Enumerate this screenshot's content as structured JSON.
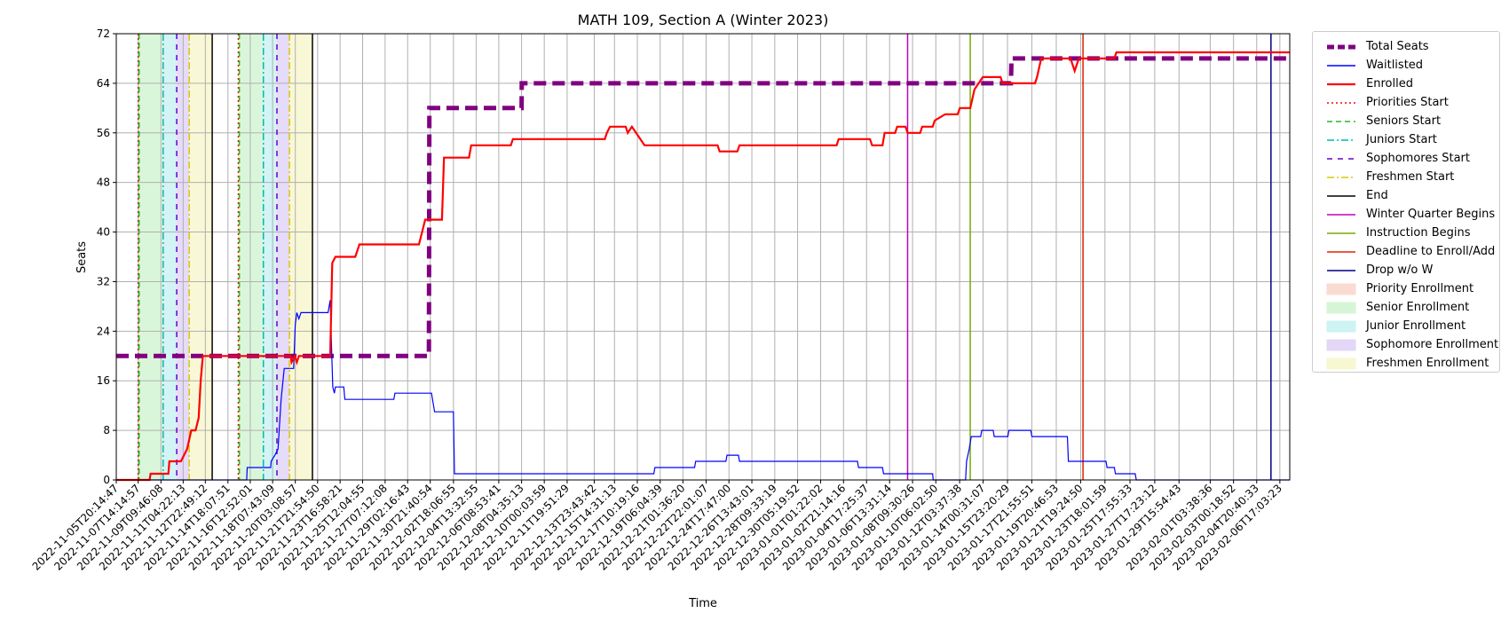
{
  "chart_data": {
    "type": "line",
    "title": "MATH 109, Section A (Winter 2023)",
    "xlabel": "Time",
    "ylabel": "Seats",
    "ylim": [
      0,
      72
    ],
    "yticks": [
      0,
      8,
      16,
      24,
      32,
      40,
      48,
      56,
      64,
      72
    ],
    "xrange": [
      "2022-11-05T20:14:47",
      "2023-02-07T12:00:00"
    ],
    "xtick_labels": [
      "2022-11-05T20:14:47",
      "2022-11-07T14:14:57",
      "2022-11-09T09:46:08",
      "2022-11-11T04:22:13",
      "2022-11-12T22:49:12",
      "2022-11-14T18:07:51",
      "2022-11-16T12:52:01",
      "2022-11-18T07:43:09",
      "2022-11-20T03:08:57",
      "2022-11-21T21:54:50",
      "2022-11-23T16:58:21",
      "2022-11-25T12:04:55",
      "2022-11-27T07:12:08",
      "2022-11-29T02:16:43",
      "2022-11-30T21:40:54",
      "2022-12-02T18:06:55",
      "2022-12-04T13:32:55",
      "2022-12-06T08:53:41",
      "2022-12-08T04:35:13",
      "2022-12-10T00:03:59",
      "2022-12-11T19:51:29",
      "2022-12-13T23:43:42",
      "2022-12-15T14:31:13",
      "2022-12-17T10:19:16",
      "2022-12-19T06:04:39",
      "2022-12-21T01:36:20",
      "2022-12-22T22:01:07",
      "2022-12-24T17:47:00",
      "2022-12-26T13:43:01",
      "2022-12-28T09:33:19",
      "2022-12-30T05:19:52",
      "2023-01-01T01:22:02",
      "2023-01-02T21:14:16",
      "2023-01-04T17:25:37",
      "2023-01-06T13:31:14",
      "2023-01-08T09:30:26",
      "2023-01-10T06:02:50",
      "2023-01-12T03:37:38",
      "2023-01-14T00:31:07",
      "2023-01-15T23:20:29",
      "2023-01-17T21:55:51",
      "2023-01-19T20:46:53",
      "2023-01-21T19:24:50",
      "2023-01-23T18:01:59",
      "2023-01-25T17:55:33",
      "2023-01-27T17:23:12",
      "2023-01-29T15:54:43",
      "2023-02-01T03:38:36",
      "2023-02-03T00:18:52",
      "2023-02-04T20:40:33",
      "2023-02-06T17:03:23"
    ],
    "grid": true,
    "legend_position": "outside-right",
    "series": [
      {
        "name": "Total Seats",
        "color": "#800080",
        "style": "dashed-thick",
        "points": [
          [
            "2022-11-05T20:14:47",
            20
          ],
          [
            "2022-11-30T19:00:00",
            20
          ],
          [
            "2022-11-30T20:00:00",
            60
          ],
          [
            "2022-12-08T04:35:13",
            60
          ],
          [
            "2022-12-08T05:00:00",
            64
          ],
          [
            "2023-01-16T06:00:00",
            64
          ],
          [
            "2023-01-16T07:00:00",
            68
          ],
          [
            "2023-02-07T12:00:00",
            68
          ]
        ]
      },
      {
        "name": "Waitlisted",
        "color": "#0000ff",
        "style": "solid",
        "points": [
          [
            "2022-11-05T20:14:47",
            0
          ],
          [
            "2022-11-16T06:00:00",
            0
          ],
          [
            "2022-11-16T07:00:00",
            2
          ],
          [
            "2022-11-18T04:00:00",
            2
          ],
          [
            "2022-11-18T05:00:00",
            3
          ],
          [
            "2022-11-18T12:00:00",
            4
          ],
          [
            "2022-11-18T18:00:00",
            5
          ],
          [
            "2022-11-19T00:00:00",
            13
          ],
          [
            "2022-11-19T06:00:00",
            18
          ],
          [
            "2022-11-20T00:00:00",
            18
          ],
          [
            "2022-11-20T03:00:00",
            25
          ],
          [
            "2022-11-20T06:00:00",
            27
          ],
          [
            "2022-11-20T10:00:00",
            26
          ],
          [
            "2022-11-20T14:00:00",
            27
          ],
          [
            "2022-11-22T18:00:00",
            27
          ],
          [
            "2022-11-22T22:00:00",
            29
          ],
          [
            "2022-11-23T01:00:00",
            20
          ],
          [
            "2022-11-23T03:00:00",
            15
          ],
          [
            "2022-11-23T06:00:00",
            14
          ],
          [
            "2022-11-23T08:00:00",
            15
          ],
          [
            "2022-11-24T00:00:00",
            15
          ],
          [
            "2022-11-24T02:00:00",
            13
          ],
          [
            "2022-11-28T00:00:00",
            13
          ],
          [
            "2022-11-28T02:00:00",
            14
          ],
          [
            "2022-12-01T00:00:00",
            14
          ],
          [
            "2022-12-01T06:00:00",
            11
          ],
          [
            "2022-12-02T18:00:00",
            11
          ],
          [
            "2022-12-02T20:00:00",
            1
          ],
          [
            "2022-12-18T18:00:00",
            1
          ],
          [
            "2022-12-18T20:00:00",
            2
          ],
          [
            "2022-12-22T00:00:00",
            2
          ],
          [
            "2022-12-22T02:00:00",
            3
          ],
          [
            "2022-12-24T12:00:00",
            3
          ],
          [
            "2022-12-24T14:00:00",
            4
          ],
          [
            "2022-12-25T12:00:00",
            4
          ],
          [
            "2022-12-25T14:00:00",
            3
          ],
          [
            "2023-01-04T00:00:00",
            3
          ],
          [
            "2023-01-04T02:00:00",
            2
          ],
          [
            "2023-01-06T00:00:00",
            2
          ],
          [
            "2023-01-06T02:00:00",
            1
          ],
          [
            "2023-01-10T00:00:00",
            1
          ],
          [
            "2023-01-10T01:00:00",
            0
          ],
          [
            "2023-01-12T15:00:00",
            0
          ],
          [
            "2023-01-12T17:00:00",
            3
          ],
          [
            "2023-01-12T22:00:00",
            5
          ],
          [
            "2023-01-13T02:00:00",
            7
          ],
          [
            "2023-01-13T20:00:00",
            7
          ],
          [
            "2023-01-13T22:00:00",
            8
          ],
          [
            "2023-01-14T20:00:00",
            8
          ],
          [
            "2023-01-14T22:00:00",
            7
          ],
          [
            "2023-01-16T00:00:00",
            7
          ],
          [
            "2023-01-16T02:00:00",
            8
          ],
          [
            "2023-01-17T20:00:00",
            8
          ],
          [
            "2023-01-17T22:00:00",
            7
          ],
          [
            "2023-01-20T18:00:00",
            7
          ],
          [
            "2023-01-20T20:00:00",
            3
          ],
          [
            "2023-01-23T20:00:00",
            3
          ],
          [
            "2023-01-23T22:00:00",
            2
          ],
          [
            "2023-01-24T12:00:00",
            2
          ],
          [
            "2023-01-24T14:00:00",
            1
          ],
          [
            "2023-01-26T04:00:00",
            1
          ],
          [
            "2023-01-26T06:00:00",
            0
          ],
          [
            "2023-02-07T12:00:00",
            0
          ]
        ]
      },
      {
        "name": "Enrolled",
        "color": "#ff0000",
        "style": "solid-thick",
        "points": [
          [
            "2022-11-05T20:14:47",
            0
          ],
          [
            "2022-11-08T12:00:00",
            0
          ],
          [
            "2022-11-08T14:00:00",
            1
          ],
          [
            "2022-11-10T00:00:00",
            1
          ],
          [
            "2022-11-10T02:00:00",
            3
          ],
          [
            "2022-11-11T00:00:00",
            3
          ],
          [
            "2022-11-11T06:00:00",
            4
          ],
          [
            "2022-11-11T12:00:00",
            5
          ],
          [
            "2022-11-11T20:00:00",
            8
          ],
          [
            "2022-11-12T04:00:00",
            8
          ],
          [
            "2022-11-12T10:00:00",
            10
          ],
          [
            "2022-11-12T14:00:00",
            16
          ],
          [
            "2022-11-12T18:00:00",
            20
          ],
          [
            "2022-11-19T00:00:00",
            20
          ],
          [
            "2022-11-19T18:00:00",
            20
          ],
          [
            "2022-11-19T20:00:00",
            19
          ],
          [
            "2022-11-20T02:00:00",
            20
          ],
          [
            "2022-11-20T06:00:00",
            19
          ],
          [
            "2022-11-20T10:00:00",
            20
          ],
          [
            "2022-11-22T22:00:00",
            20
          ],
          [
            "2022-11-23T02:00:00",
            35
          ],
          [
            "2022-11-23T08:00:00",
            36
          ],
          [
            "2022-11-24T22:00:00",
            36
          ],
          [
            "2022-11-25T02:00:00",
            37
          ],
          [
            "2022-11-25T06:00:00",
            38
          ],
          [
            "2022-11-30T00:00:00",
            38
          ],
          [
            "2022-11-30T06:00:00",
            40
          ],
          [
            "2022-11-30T12:00:00",
            42
          ],
          [
            "2022-12-01T20:00:00",
            42
          ],
          [
            "2022-12-02T00:00:00",
            52
          ],
          [
            "2022-12-04T00:00:00",
            52
          ],
          [
            "2022-12-04T04:00:00",
            54
          ],
          [
            "2022-12-07T08:00:00",
            54
          ],
          [
            "2022-12-07T12:00:00",
            55
          ],
          [
            "2022-12-14T20:00:00",
            55
          ],
          [
            "2022-12-15T00:00:00",
            56
          ],
          [
            "2022-12-15T06:00:00",
            57
          ],
          [
            "2022-12-16T12:00:00",
            57
          ],
          [
            "2022-12-16T16:00:00",
            56
          ],
          [
            "2022-12-17T00:00:00",
            57
          ],
          [
            "2022-12-17T08:00:00",
            56
          ],
          [
            "2022-12-18T00:00:00",
            54
          ],
          [
            "2022-12-23T20:00:00",
            54
          ],
          [
            "2022-12-24T00:00:00",
            53
          ],
          [
            "2022-12-25T10:00:00",
            53
          ],
          [
            "2022-12-25T14:00:00",
            54
          ],
          [
            "2023-01-02T08:00:00",
            54
          ],
          [
            "2023-01-02T12:00:00",
            55
          ],
          [
            "2023-01-05T00:00:00",
            55
          ],
          [
            "2023-01-05T04:00:00",
            54
          ],
          [
            "2023-01-06T00:00:00",
            54
          ],
          [
            "2023-01-06T04:00:00",
            56
          ],
          [
            "2023-01-07T00:00:00",
            56
          ],
          [
            "2023-01-07T04:00:00",
            57
          ],
          [
            "2023-01-07T20:00:00",
            57
          ],
          [
            "2023-01-08T00:00:00",
            56
          ],
          [
            "2023-01-09T00:00:00",
            56
          ],
          [
            "2023-01-09T04:00:00",
            57
          ],
          [
            "2023-01-10T00:00:00",
            57
          ],
          [
            "2023-01-10T04:00:00",
            58
          ],
          [
            "2023-01-11T00:00:00",
            59
          ],
          [
            "2023-01-12T00:00:00",
            59
          ],
          [
            "2023-01-12T04:00:00",
            60
          ],
          [
            "2023-01-13T00:00:00",
            60
          ],
          [
            "2023-01-13T08:00:00",
            63
          ],
          [
            "2023-01-13T16:00:00",
            64
          ],
          [
            "2023-01-14T00:00:00",
            65
          ],
          [
            "2023-01-15T10:00:00",
            65
          ],
          [
            "2023-01-15T14:00:00",
            64
          ],
          [
            "2023-01-18T04:00:00",
            64
          ],
          [
            "2023-01-18T08:00:00",
            65
          ],
          [
            "2023-01-18T16:00:00",
            68
          ],
          [
            "2023-01-21T00:00:00",
            68
          ],
          [
            "2023-01-21T08:00:00",
            66
          ],
          [
            "2023-01-21T16:00:00",
            68
          ],
          [
            "2023-01-24T12:00:00",
            68
          ],
          [
            "2023-01-24T16:00:00",
            69
          ],
          [
            "2023-02-07T12:00:00",
            69
          ]
        ]
      }
    ],
    "vertical_lines": [
      {
        "name": "Priorities Start",
        "color": "#ff0000",
        "style": "dotted",
        "dates": [
          "2022-11-07T14:14:57",
          "2022-11-15T14:00:00"
        ]
      },
      {
        "name": "Seniors Start",
        "color": "#22bb22",
        "style": "dashed",
        "dates": [
          "2022-11-07T16:00:00",
          "2022-11-15T16:00:00"
        ]
      },
      {
        "name": "Juniors Start",
        "color": "#00b8b8",
        "style": "dashdot",
        "dates": [
          "2022-11-09T14:00:00",
          "2022-11-17T14:00:00"
        ]
      },
      {
        "name": "Sophomores Start",
        "color": "#6600cc",
        "style": "loosedash",
        "dates": [
          "2022-11-10T16:00:00",
          "2022-11-18T16:00:00"
        ]
      },
      {
        "name": "Freshmen Start",
        "color": "#d8c800",
        "style": "dashdot",
        "dates": [
          "2022-11-11T16:00:00",
          "2022-11-19T16:00:00"
        ]
      },
      {
        "name": "End",
        "color": "#000000",
        "style": "solid",
        "dates": [
          "2022-11-13T12:00:00",
          "2022-11-21T12:00:00"
        ]
      },
      {
        "name": "Winter Quarter Begins",
        "color": "#c000c0",
        "style": "solid",
        "dates": [
          "2023-01-08T00:00:00"
        ]
      },
      {
        "name": "Instruction Begins",
        "color": "#77aa00",
        "style": "solid",
        "dates": [
          "2023-01-13T00:00:00"
        ]
      },
      {
        "name": "Deadline to Enroll/Add",
        "color": "#dd2200",
        "style": "solid",
        "dates": [
          "2023-01-22T00:00:00"
        ]
      },
      {
        "name": "Drop w/o W",
        "color": "#000080",
        "style": "solid",
        "dates": [
          "2023-02-06T00:00:00"
        ]
      }
    ],
    "shaded_regions": [
      {
        "name": "Priority Enrollment",
        "color": "#fadbd2",
        "ranges": [
          [
            "2022-11-07T14:14:57",
            "2022-11-07T16:00:00"
          ],
          [
            "2022-11-15T14:00:00",
            "2022-11-15T16:00:00"
          ]
        ]
      },
      {
        "name": "Senior Enrollment",
        "color": "#d6f5d6",
        "ranges": [
          [
            "2022-11-07T16:00:00",
            "2022-11-09T14:00:00"
          ],
          [
            "2022-11-15T16:00:00",
            "2022-11-17T14:00:00"
          ]
        ]
      },
      {
        "name": "Junior Enrollment",
        "color": "#cdf3f3",
        "ranges": [
          [
            "2022-11-09T14:00:00",
            "2022-11-10T16:00:00"
          ],
          [
            "2022-11-17T14:00:00",
            "2022-11-18T16:00:00"
          ]
        ]
      },
      {
        "name": "Sophomore Enrollment",
        "color": "#e3d7f7",
        "ranges": [
          [
            "2022-11-10T16:00:00",
            "2022-11-11T16:00:00"
          ],
          [
            "2022-11-18T16:00:00",
            "2022-11-19T16:00:00"
          ]
        ]
      },
      {
        "name": "Freshmen Enrollment",
        "color": "#f7f7d2",
        "ranges": [
          [
            "2022-11-11T16:00:00",
            "2022-11-13T12:00:00"
          ],
          [
            "2022-11-19T16:00:00",
            "2022-11-21T12:00:00"
          ]
        ]
      }
    ],
    "legend": [
      "Total Seats",
      "Waitlisted",
      "Enrolled",
      "Priorities Start",
      "Seniors Start",
      "Juniors Start",
      "Sophomores Start",
      "Freshmen Start",
      "End",
      "Winter Quarter Begins",
      "Instruction Begins",
      "Deadline to Enroll/Add",
      "Drop w/o W",
      "Priority Enrollment",
      "Senior Enrollment",
      "Junior Enrollment",
      "Sophomore Enrollment",
      "Freshmen Enrollment"
    ]
  }
}
